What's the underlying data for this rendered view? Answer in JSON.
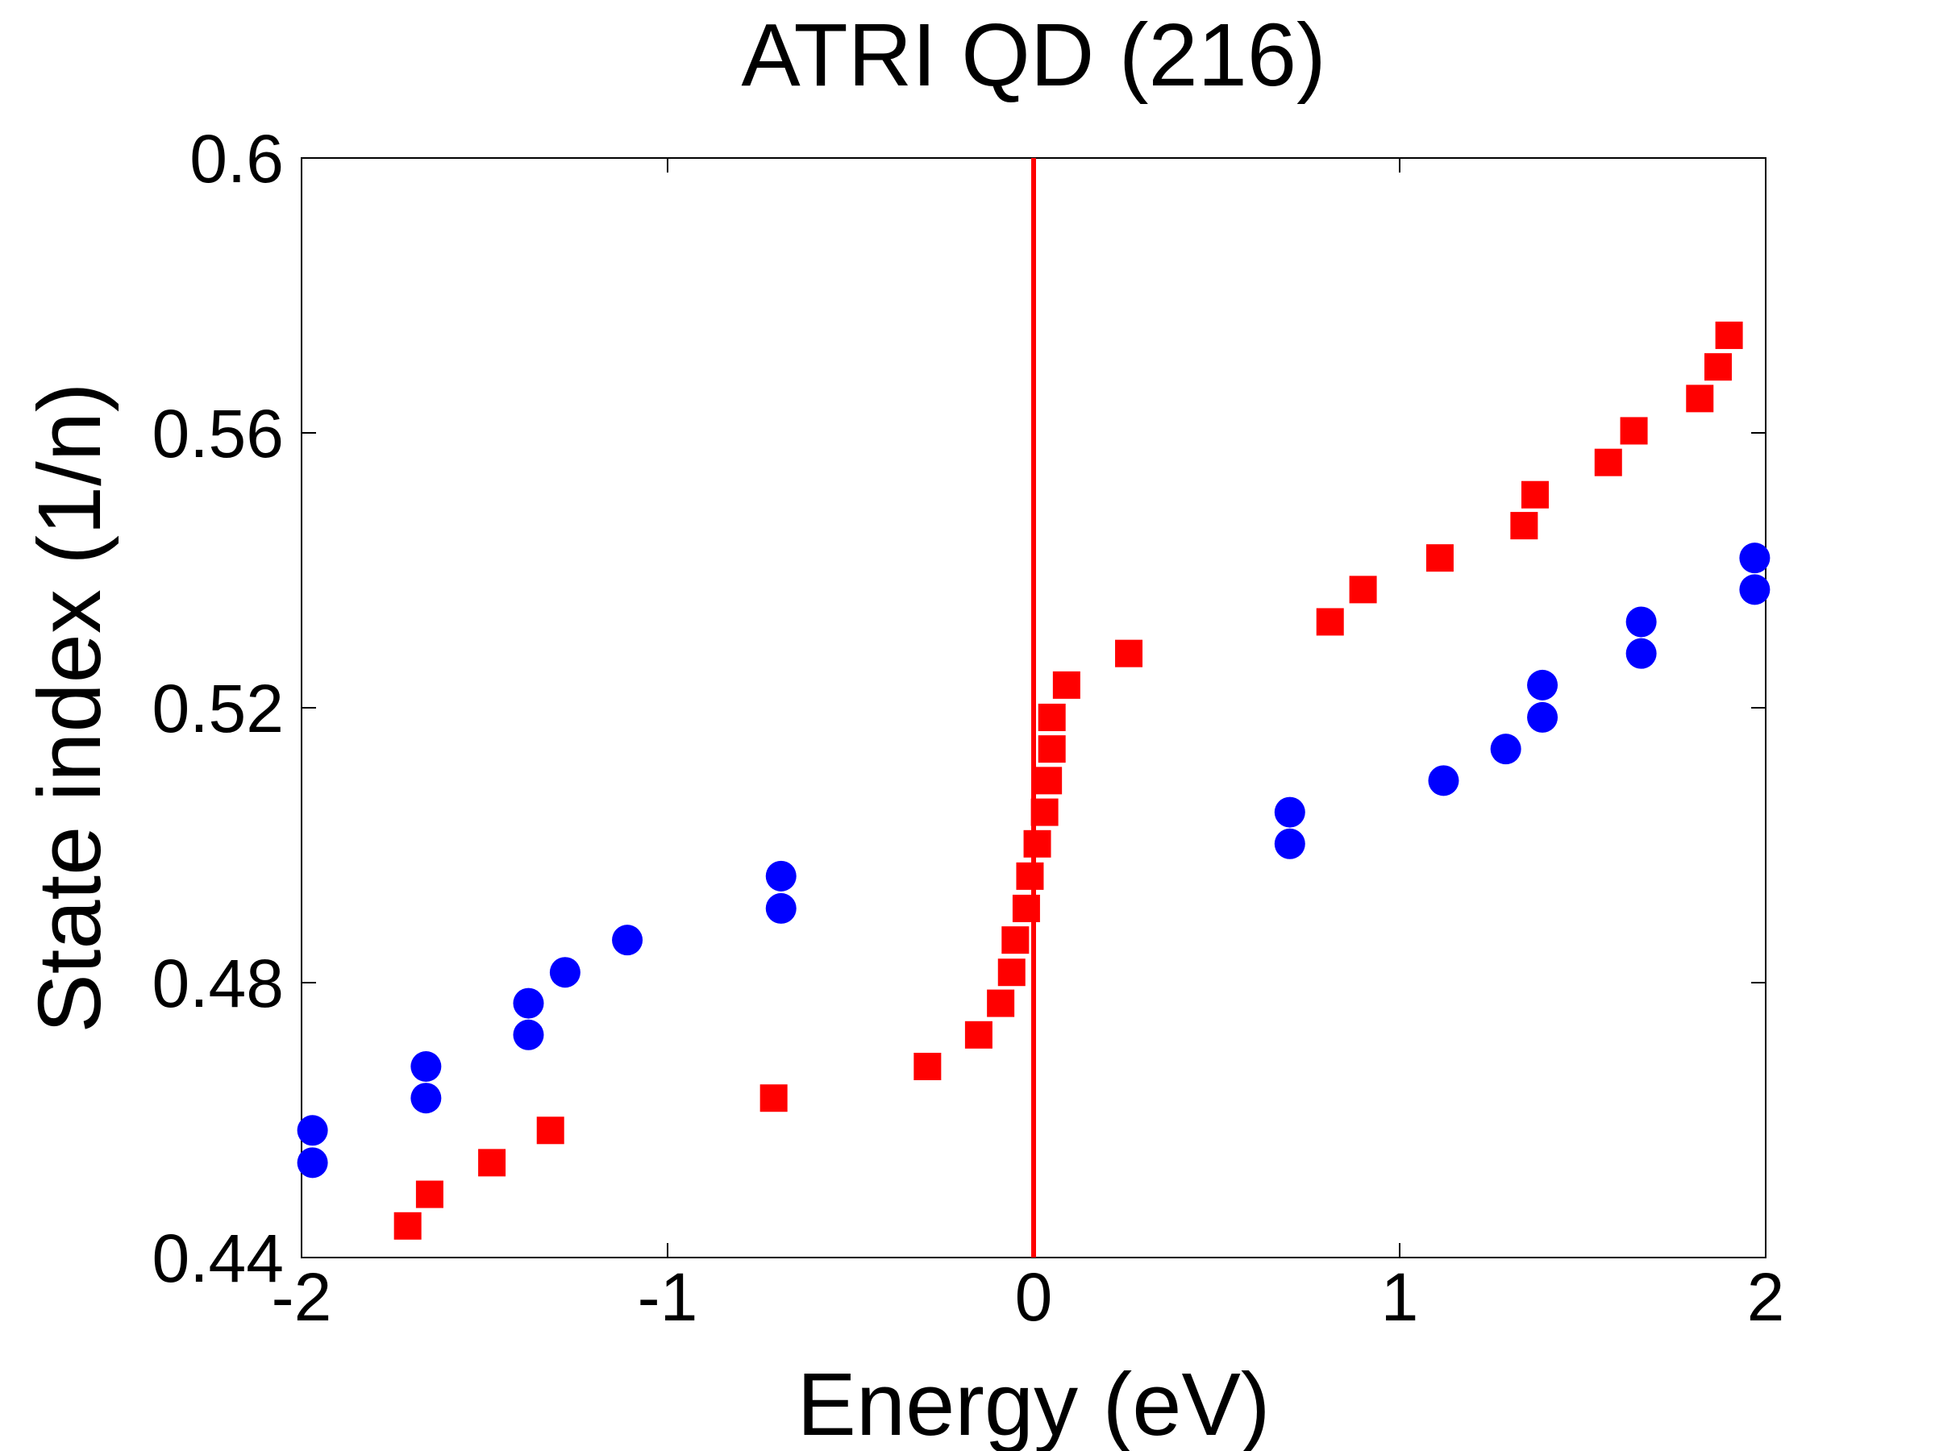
{
  "chart_data": {
    "type": "scatter",
    "title": "ATRI QD (216)",
    "xlabel": "Energy (eV)",
    "ylabel": "State index (1/n)",
    "xlim": [
      -2,
      2
    ],
    "ylim": [
      0.44,
      0.6
    ],
    "xticks": [
      -2,
      -1,
      0,
      1,
      2
    ],
    "yticks": [
      0.44,
      0.48,
      0.52,
      0.56,
      0.6
    ],
    "xtick_labels": [
      "-2",
      "-1",
      "0",
      "1",
      "2"
    ],
    "ytick_labels": [
      "0.44",
      "0.48",
      "0.52",
      "0.56",
      "0.6"
    ],
    "grid": false,
    "vline": {
      "x": 0,
      "color": "#ff0000"
    },
    "series": [
      {
        "name": "blue-circles",
        "marker": "circle",
        "color": "#0000ff",
        "points": [
          [
            -1.97,
            0.4585
          ],
          [
            -1.97,
            0.4538
          ],
          [
            -1.66,
            0.4678
          ],
          [
            -1.66,
            0.4632
          ],
          [
            -1.38,
            0.477
          ],
          [
            -1.38,
            0.4724
          ],
          [
            -1.28,
            0.4815
          ],
          [
            -1.11,
            0.4862
          ],
          [
            -0.69,
            0.4955
          ],
          [
            -0.69,
            0.4908
          ],
          [
            0.7,
            0.5048
          ],
          [
            0.7,
            0.5002
          ],
          [
            1.12,
            0.5094
          ],
          [
            1.29,
            0.514
          ],
          [
            1.39,
            0.5233
          ],
          [
            1.39,
            0.5186
          ],
          [
            1.66,
            0.5325
          ],
          [
            1.66,
            0.5279
          ],
          [
            1.97,
            0.5418
          ],
          [
            1.97,
            0.5372
          ]
        ]
      },
      {
        "name": "red-squares",
        "marker": "square",
        "color": "#ff0000",
        "points": [
          [
            -1.71,
            0.4446
          ],
          [
            -1.65,
            0.4492
          ],
          [
            -1.48,
            0.4538
          ],
          [
            -1.32,
            0.4585
          ],
          [
            -0.71,
            0.4632
          ],
          [
            -0.29,
            0.4678
          ],
          [
            -0.15,
            0.4724
          ],
          [
            -0.09,
            0.477
          ],
          [
            -0.06,
            0.4815
          ],
          [
            -0.05,
            0.4862
          ],
          [
            -0.02,
            0.4908
          ],
          [
            -0.01,
            0.4955
          ],
          [
            0.01,
            0.5002
          ],
          [
            0.03,
            0.5048
          ],
          [
            0.04,
            0.5094
          ],
          [
            0.05,
            0.514
          ],
          [
            0.05,
            0.5186
          ],
          [
            0.09,
            0.5233
          ],
          [
            0.26,
            0.5279
          ],
          [
            0.81,
            0.5325
          ],
          [
            0.9,
            0.5372
          ],
          [
            1.11,
            0.5418
          ],
          [
            1.34,
            0.5465
          ],
          [
            1.37,
            0.551
          ],
          [
            1.57,
            0.5557
          ],
          [
            1.64,
            0.5603
          ],
          [
            1.82,
            0.565
          ],
          [
            1.87,
            0.5696
          ],
          [
            1.9,
            0.5742
          ]
        ]
      }
    ]
  }
}
